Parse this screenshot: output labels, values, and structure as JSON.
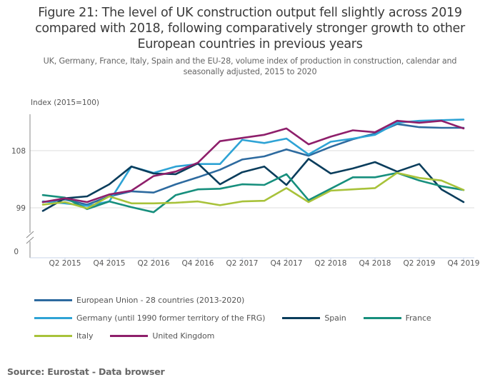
{
  "title": "Figure 21: The level of UK construction output fell slightly across 2019 compared with 2018, following comparatively stronger growth to other European countries in previous years",
  "title_lines": [
    "Figure 21: The level of UK construction output fell slightly across 2019",
    "compared with 2018, following comparatively stronger growth to other",
    "European countries in previous years"
  ],
  "subtitle_lines": [
    "UK, Germany, France, Italy, Spain and the EU-28, volume index of production in construction, calendar and",
    "seasonally adjusted, 2015 to 2020"
  ],
  "source": "Source: Eurostat - Data browser",
  "chart_data": {
    "type": "line",
    "title": "Figure 21: The level of UK construction output fell slightly across 2019 compared with 2018, following comparatively stronger growth to other European countries in previous years",
    "ylabel": "Index (2015=100)",
    "xlabel": "",
    "x": [
      "Q1 2015",
      "Q2 2015",
      "Q3 2015",
      "Q4 2015",
      "Q1 2016",
      "Q2 2016",
      "Q3 2016",
      "Q4 2016",
      "Q1 2017",
      "Q2 2017",
      "Q3 2017",
      "Q4 2017",
      "Q1 2018",
      "Q2 2018",
      "Q3 2018",
      "Q4 2018",
      "Q1 2019",
      "Q2 2019",
      "Q3 2019",
      "Q4 2019"
    ],
    "x_tick_labels": [
      "Q2 2015",
      "Q4 2015",
      "Q2 2016",
      "Q4 2016",
      "Q2 2017",
      "Q4 2017",
      "Q2 2018",
      "Q4 2018",
      "Q2 2019",
      "Q4 2019"
    ],
    "y_ticks": [
      0,
      99,
      108
    ],
    "y_axis_break": true,
    "ylim": [
      92,
      116
    ],
    "grid": true,
    "legend_position": "bottom",
    "series": [
      {
        "name": "European Union - 28 countries (2013-2020)",
        "color": "#2d6a9f",
        "values": [
          99.9,
          100.3,
          99.5,
          100.8,
          101.6,
          101.4,
          102.7,
          103.8,
          105.0,
          106.6,
          107.1,
          108.2,
          107.2,
          108.6,
          109.8,
          110.7,
          112.2,
          111.7,
          111.6,
          111.6
        ]
      },
      {
        "name": "Germany (until 1990 former territory of the FRG)",
        "color": "#2ea3d5",
        "values": [
          100.0,
          99.7,
          99.3,
          100.0,
          105.5,
          104.5,
          105.5,
          105.9,
          105.9,
          109.7,
          109.2,
          109.9,
          107.4,
          109.4,
          109.9,
          110.5,
          112.4,
          112.7,
          112.8,
          112.9
        ]
      },
      {
        "name": "Spain",
        "color": "#0a3d5c",
        "values": [
          98.5,
          100.5,
          100.8,
          102.7,
          105.5,
          104.4,
          104.3,
          106.0,
          102.7,
          104.6,
          105.5,
          102.6,
          106.7,
          104.4,
          105.2,
          106.2,
          104.7,
          105.9,
          101.9,
          99.9
        ]
      },
      {
        "name": "France",
        "color": "#178f7d",
        "values": [
          101.0,
          100.6,
          98.8,
          100.0,
          99.1,
          98.3,
          101.0,
          101.9,
          102.0,
          102.7,
          102.6,
          104.3,
          100.2,
          102.0,
          103.8,
          103.8,
          104.5,
          103.3,
          102.4,
          101.8
        ]
      },
      {
        "name": "Italy",
        "color": "#a8c23a",
        "values": [
          99.5,
          99.9,
          98.9,
          100.8,
          99.7,
          99.7,
          99.8,
          100.0,
          99.4,
          100.0,
          100.1,
          102.1,
          99.9,
          101.7,
          101.9,
          102.1,
          104.5,
          103.7,
          103.3,
          101.8
        ]
      },
      {
        "name": "United Kingdom",
        "color": "#8e1f6b",
        "values": [
          99.9,
          100.5,
          99.9,
          101.1,
          101.7,
          104.0,
          104.7,
          106.1,
          109.5,
          110.0,
          110.5,
          111.5,
          109.0,
          110.2,
          111.2,
          110.9,
          112.7,
          112.4,
          112.7,
          111.5
        ]
      }
    ]
  },
  "legend_rows": [
    [
      0
    ],
    [
      1,
      2,
      3
    ],
    [
      4,
      5
    ]
  ]
}
